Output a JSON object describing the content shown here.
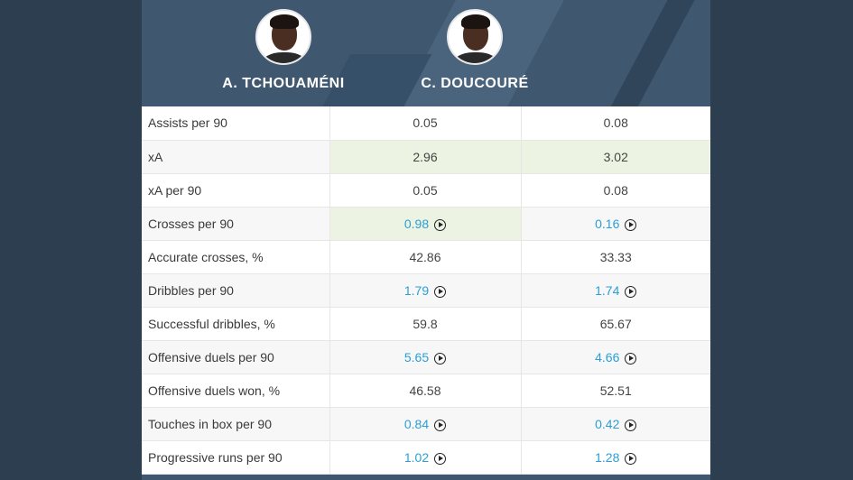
{
  "players": [
    {
      "name": "A. TCHOUAMÉNI",
      "avatar": "player-photo-tchouameni"
    },
    {
      "name": "C. DOUCOURÉ",
      "avatar": "player-photo-doucoure"
    }
  ],
  "colors": {
    "background": "#2d3e50",
    "highlight": "#edf3e2",
    "link": "#2a9fd6"
  },
  "rows": [
    {
      "label": "Assists per 90",
      "v1": "0.05",
      "v2": "0.08",
      "link": false,
      "hl": "none"
    },
    {
      "label": "xA",
      "v1": "2.96",
      "v2": "3.02",
      "link": false,
      "hl": "both"
    },
    {
      "label": "xA per 90",
      "v1": "0.05",
      "v2": "0.08",
      "link": false,
      "hl": "none"
    },
    {
      "label": "Crosses per 90",
      "v1": "0.98",
      "v2": "0.16",
      "link": true,
      "hl": "v1"
    },
    {
      "label": "Accurate crosses, %",
      "v1": "42.86",
      "v2": "33.33",
      "link": false,
      "hl": "none"
    },
    {
      "label": "Dribbles per 90",
      "v1": "1.79",
      "v2": "1.74",
      "link": true,
      "hl": "none"
    },
    {
      "label": "Successful dribbles, %",
      "v1": "59.8",
      "v2": "65.67",
      "link": false,
      "hl": "none"
    },
    {
      "label": "Offensive duels per 90",
      "v1": "5.65",
      "v2": "4.66",
      "link": true,
      "hl": "none"
    },
    {
      "label": "Offensive duels won, %",
      "v1": "46.58",
      "v2": "52.51",
      "link": false,
      "hl": "none"
    },
    {
      "label": "Touches in box per 90",
      "v1": "0.84",
      "v2": "0.42",
      "link": true,
      "hl": "none"
    },
    {
      "label": "Progressive runs per 90",
      "v1": "1.02",
      "v2": "1.28",
      "link": true,
      "hl": "none"
    }
  ]
}
